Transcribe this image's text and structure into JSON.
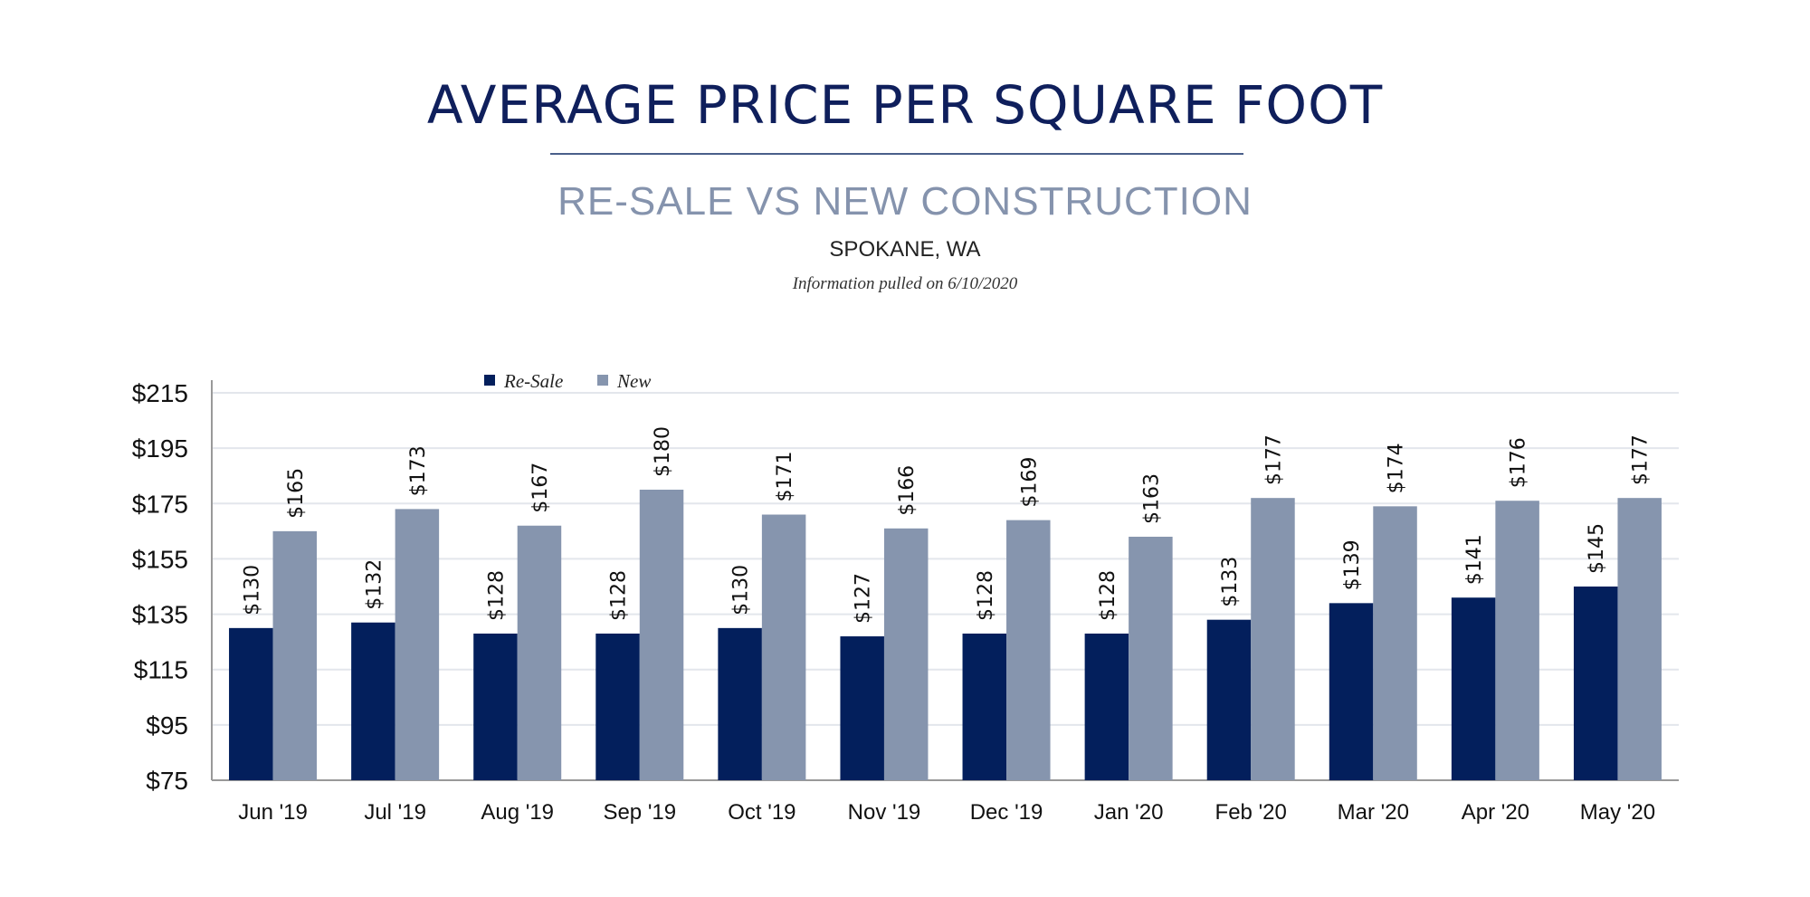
{
  "header": {
    "title": "AVERAGE PRICE PER SQUARE FOOT",
    "subtitle": "RE-SALE VS NEW CONSTRUCTION",
    "location": "SPOKANE, WA",
    "info": "Information pulled on 6/10/2020"
  },
  "chart_data": {
    "type": "bar",
    "categories": [
      "Jun '19",
      "Jul '19",
      "Aug '19",
      "Sep '19",
      "Oct '19",
      "Nov '19",
      "Dec '19",
      "Jan '20",
      "Feb '20",
      "Mar '20",
      "Apr '20",
      "May '20"
    ],
    "series": [
      {
        "name": "Re-Sale",
        "color": "#031f5c",
        "values": [
          130,
          132,
          128,
          128,
          130,
          127,
          128,
          128,
          133,
          139,
          141,
          145
        ]
      },
      {
        "name": "New",
        "color": "#8695ae",
        "values": [
          165,
          173,
          167,
          180,
          171,
          166,
          169,
          163,
          177,
          174,
          176,
          177
        ]
      }
    ],
    "ylim": [
      75,
      215
    ],
    "yticks": [
      75,
      95,
      115,
      135,
      155,
      175,
      195,
      215
    ],
    "ytick_prefix": "$",
    "data_label_prefix": "$",
    "grid": true,
    "legend": "top-left"
  }
}
